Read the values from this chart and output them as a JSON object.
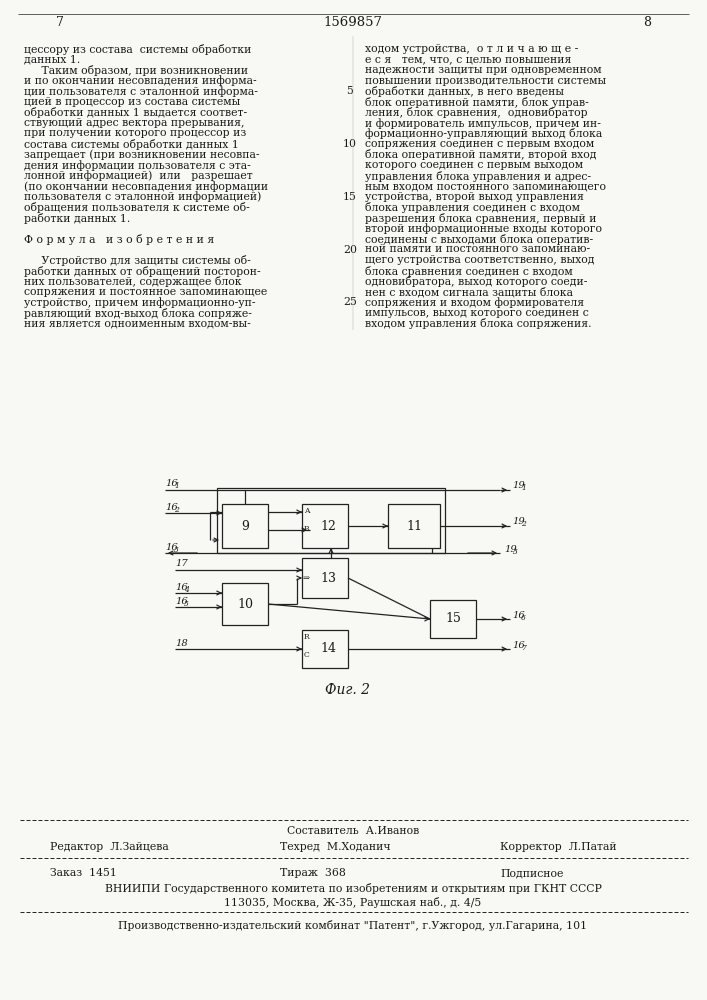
{
  "page_bg": "#f8f8f4",
  "header": {
    "left_num": "7",
    "center_num": "1569857",
    "right_num": "8"
  },
  "left_col": [
    "цессору из состава  системы обработки",
    "данных 1.",
    "     Таким образом, при возникновении",
    "и по окончании несовпадения информа-",
    "ции пользователя с эталонной информа-",
    "цией в процессор из состава системы",
    "обработки данных 1 выдается соответ-",
    "ствующий адрес вектора прерывания,",
    "при получении которого процессор из",
    "состава системы обработки данных 1",
    "запрещает (при возникновении несовпа-",
    "дения информации пользователя с эта-",
    "лонной информацией)  или   разрешает",
    "(по окончании несовпадения информации",
    "пользователя с эталонной информацией)",
    "обращения пользователя к системе об-",
    "работки данных 1.",
    "",
    "Ф о р м у л а   и з о б р е т е н и я",
    "",
    "     Устройство для защиты системы об-",
    "работки данных от обращений посторон-",
    "них пользователей, содержащее блок",
    "сопряжения и постоянное запоминающее",
    "устройство, причем информационно-уп-",
    "равляющий вход-выход блока сопряже-",
    "ния является одноименным входом-вы-"
  ],
  "right_col": [
    "ходом устройства,  о т л и ч а ю щ е -",
    "е с я   тем, что, с целью повышения",
    "надежности защиты при одновременном",
    "повышении производительности системы",
    "обработки данных, в него введены",
    "блок оперативной памяти, блок управ-",
    "ления, блок сравнения,  одновибратор",
    "и формирователь импульсов, причем ин-",
    "формационно-управляющий выход блока",
    "сопряжения соединен с первым входом",
    "блока оперативной памяти, второй вход",
    "которого соединен с первым выходом",
    "управления блока управления и адрес-",
    "ным входом постоянного запоминающего",
    "устройства, второй выход управления",
    "блока управления соединен с входом",
    "разрешения блока сравнения, первый и",
    "второй информационные входы которого",
    "соединены с выходами блока оператив-",
    "ной памяти и постоянного запоминаю-",
    "щего устройства соответственно, выход",
    "блока сравнения соединен с входом",
    "одновибратора, выход которого соеди-",
    "нен с входом сигнала защиты блока",
    "сопряжения и входом формирователя",
    "импульсов, выход которого соединен с",
    "входом управления блока сопряжения."
  ],
  "line_numbers_rows": [
    4,
    9,
    14,
    19,
    24
  ],
  "line_numbers_vals": [
    "5",
    "10",
    "15",
    "20",
    "25"
  ],
  "footer": {
    "composer": "Составитель  А.Иванов",
    "editor": "Редактор  Л.Зайцева",
    "techred": "Техред  М.Ходанич",
    "corrector": "Корректор  Л.Патай",
    "order": "Заказ  1451",
    "tirazh": "Тираж  368",
    "podpisnoe": "Подписное",
    "vniiipi1": "ВНИИПИ Государственного комитета по изобретениям и открытиям при ГКНТ СССР",
    "vniiipi2": "113035, Москва, Ж-35, Раушская наб., д. 4/5",
    "factory": "Производственно-издательский комбинат \"Патент\", г.Ужгород, ул.Гагарина, 101"
  },
  "fig_label": "Фиг. 2",
  "diagram": {
    "block9": {
      "xl": 222,
      "xr": 268,
      "yt": 504,
      "yb": 548
    },
    "block12": {
      "xl": 302,
      "xr": 348,
      "yt": 504,
      "yb": 548
    },
    "block11": {
      "xl": 388,
      "xr": 440,
      "yt": 504,
      "yb": 548
    },
    "block13": {
      "xl": 302,
      "xr": 348,
      "yt": 558,
      "yb": 598
    },
    "block10": {
      "xl": 222,
      "xr": 268,
      "yt": 583,
      "yb": 625
    },
    "block15": {
      "xl": 430,
      "xr": 476,
      "yt": 600,
      "yb": 638
    },
    "block14": {
      "xl": 302,
      "xr": 348,
      "yt": 630,
      "yb": 668
    }
  }
}
